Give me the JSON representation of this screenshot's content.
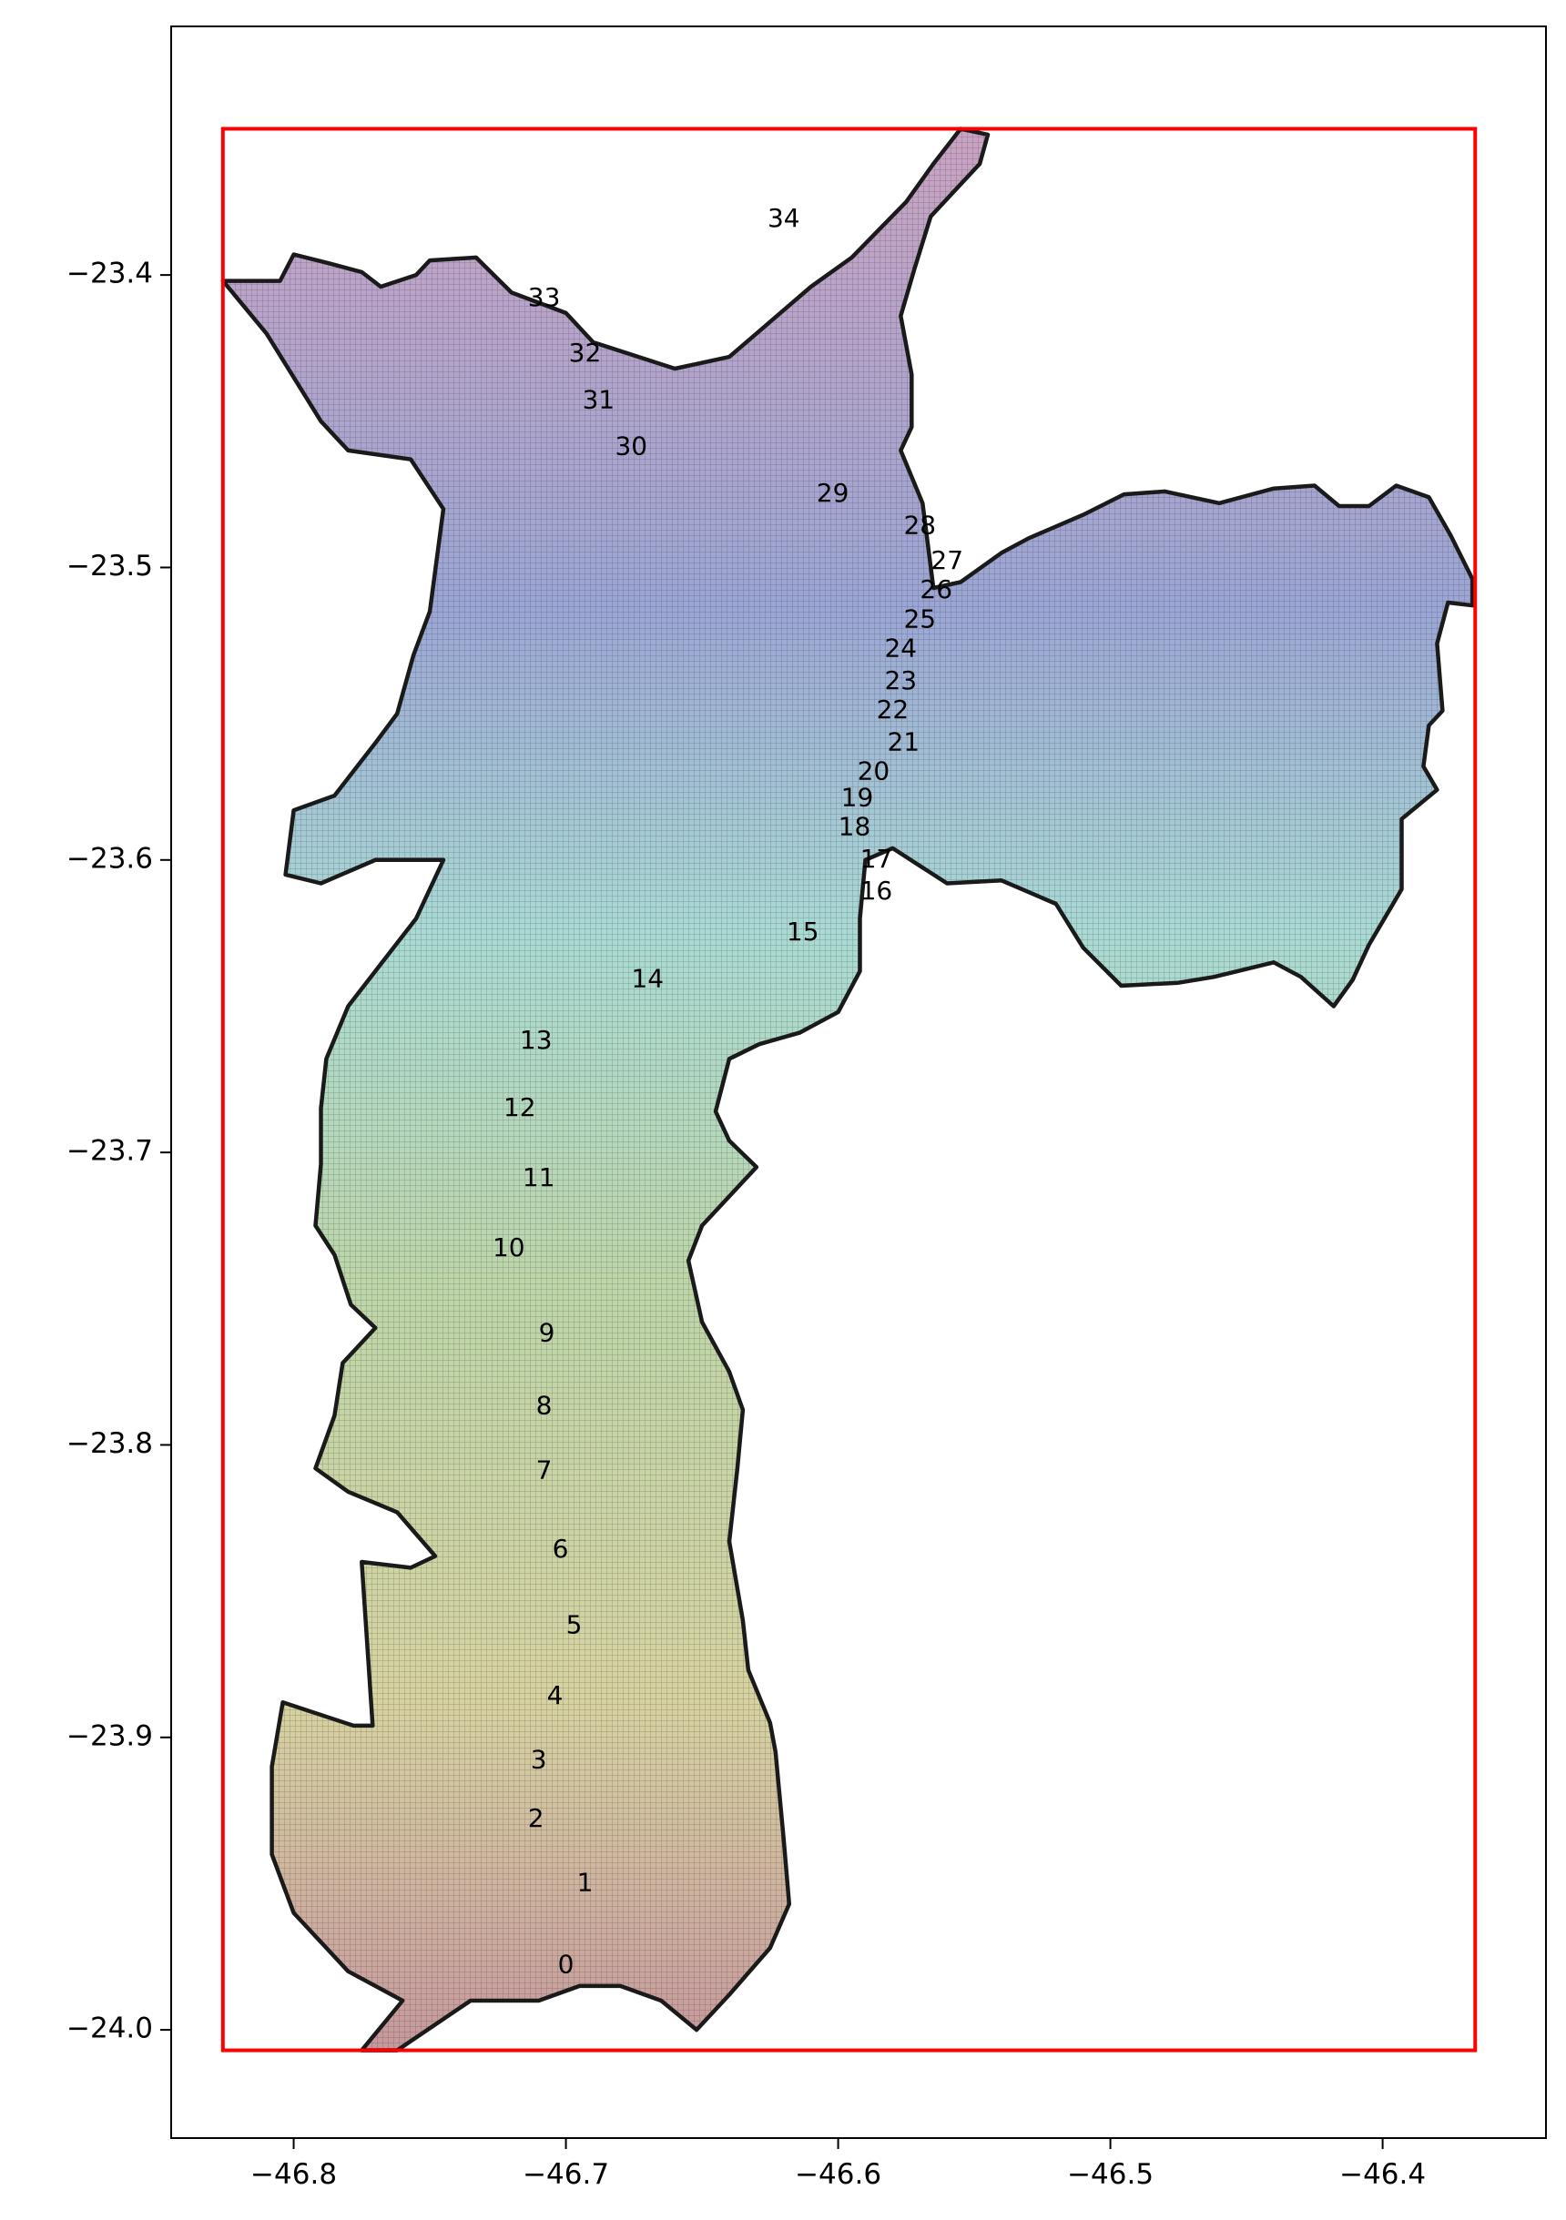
{
  "chart_data": {
    "type": "map",
    "xlim": [
      -46.845,
      -46.34
    ],
    "ylim": [
      -24.037,
      -23.315
    ],
    "xticks": [
      {
        "value": -46.8,
        "label": "−46.8"
      },
      {
        "value": -46.7,
        "label": "−46.7"
      },
      {
        "value": -46.6,
        "label": "−46.6"
      },
      {
        "value": -46.5,
        "label": "−46.5"
      },
      {
        "value": -46.4,
        "label": "−46.4"
      }
    ],
    "yticks": [
      {
        "value": -23.4,
        "label": "−23.4"
      },
      {
        "value": -23.5,
        "label": "−23.5"
      },
      {
        "value": -23.6,
        "label": "−23.6"
      },
      {
        "value": -23.7,
        "label": "−23.7"
      },
      {
        "value": -23.8,
        "label": "−23.8"
      },
      {
        "value": -23.9,
        "label": "−23.9"
      },
      {
        "value": -24.0,
        "label": "−24.0"
      }
    ],
    "bbox_rect": {
      "lon_min": -46.826,
      "lon_max": -46.366,
      "lat_min": -24.007,
      "lat_max": -23.35,
      "color": "#ff0000"
    },
    "gradient_colors": [
      "#c9a3c1",
      "#9aa6d4",
      "#a9dbd4",
      "#bcd6a8",
      "#d6d3a0",
      "#c6989c"
    ],
    "outline_color": "#1a1a1a",
    "boundary": [
      [
        -46.826,
        -23.402
      ],
      [
        -46.805,
        -23.402
      ],
      [
        -46.8,
        -23.393
      ],
      [
        -46.787,
        -23.396
      ],
      [
        -46.775,
        -23.399
      ],
      [
        -46.768,
        -23.404
      ],
      [
        -46.755,
        -23.4
      ],
      [
        -46.75,
        -23.395
      ],
      [
        -46.733,
        -23.394
      ],
      [
        -46.72,
        -23.406
      ],
      [
        -46.7,
        -23.413
      ],
      [
        -46.69,
        -23.423
      ],
      [
        -46.66,
        -23.432
      ],
      [
        -46.64,
        -23.428
      ],
      [
        -46.63,
        -23.42
      ],
      [
        -46.62,
        -23.412
      ],
      [
        -46.61,
        -23.404
      ],
      [
        -46.595,
        -23.394
      ],
      [
        -46.575,
        -23.375
      ],
      [
        -46.565,
        -23.362
      ],
      [
        -46.555,
        -23.35
      ],
      [
        -46.545,
        -23.352
      ],
      [
        -46.548,
        -23.362
      ],
      [
        -46.556,
        -23.37
      ],
      [
        -46.566,
        -23.38
      ],
      [
        -46.572,
        -23.398
      ],
      [
        -46.577,
        -23.414
      ],
      [
        -46.573,
        -23.434
      ],
      [
        -46.573,
        -23.452
      ],
      [
        -46.577,
        -23.46
      ],
      [
        -46.569,
        -23.478
      ],
      [
        -46.565,
        -23.507
      ],
      [
        -46.555,
        -23.505
      ],
      [
        -46.54,
        -23.495
      ],
      [
        -46.53,
        -23.49
      ],
      [
        -46.51,
        -23.482
      ],
      [
        -46.495,
        -23.475
      ],
      [
        -46.48,
        -23.474
      ],
      [
        -46.46,
        -23.478
      ],
      [
        -46.44,
        -23.473
      ],
      [
        -46.425,
        -23.472
      ],
      [
        -46.416,
        -23.479
      ],
      [
        -46.405,
        -23.479
      ],
      [
        -46.395,
        -23.472
      ],
      [
        -46.383,
        -23.476
      ],
      [
        -46.375,
        -23.489
      ],
      [
        -46.367,
        -23.504
      ],
      [
        -46.367,
        -23.513
      ],
      [
        -46.376,
        -23.512
      ],
      [
        -46.38,
        -23.526
      ],
      [
        -46.378,
        -23.549
      ],
      [
        -46.383,
        -23.554
      ],
      [
        -46.385,
        -23.568
      ],
      [
        -46.38,
        -23.576
      ],
      [
        -46.393,
        -23.586
      ],
      [
        -46.393,
        -23.61
      ],
      [
        -46.405,
        -23.629
      ],
      [
        -46.411,
        -23.641
      ],
      [
        -46.418,
        -23.65
      ],
      [
        -46.43,
        -23.64
      ],
      [
        -46.44,
        -23.635
      ],
      [
        -46.462,
        -23.64
      ],
      [
        -46.475,
        -23.642
      ],
      [
        -46.496,
        -23.643
      ],
      [
        -46.51,
        -23.63
      ],
      [
        -46.52,
        -23.615
      ],
      [
        -46.54,
        -23.607
      ],
      [
        -46.56,
        -23.608
      ],
      [
        -46.58,
        -23.596
      ],
      [
        -46.59,
        -23.6
      ],
      [
        -46.592,
        -23.62
      ],
      [
        -46.592,
        -23.638
      ],
      [
        -46.6,
        -23.652
      ],
      [
        -46.614,
        -23.659
      ],
      [
        -46.629,
        -23.663
      ],
      [
        -46.64,
        -23.668
      ],
      [
        -46.645,
        -23.686
      ],
      [
        -46.64,
        -23.696
      ],
      [
        -46.63,
        -23.705
      ],
      [
        -46.65,
        -23.725
      ],
      [
        -46.655,
        -23.737
      ],
      [
        -46.65,
        -23.758
      ],
      [
        -46.64,
        -23.775
      ],
      [
        -46.635,
        -23.788
      ],
      [
        -46.637,
        -23.808
      ],
      [
        -46.64,
        -23.833
      ],
      [
        -46.635,
        -23.86
      ],
      [
        -46.633,
        -23.877
      ],
      [
        -46.625,
        -23.895
      ],
      [
        -46.623,
        -23.905
      ],
      [
        -46.62,
        -23.935
      ],
      [
        -46.618,
        -23.957
      ],
      [
        -46.625,
        -23.972
      ],
      [
        -46.64,
        -23.988
      ],
      [
        -46.652,
        -24.0
      ],
      [
        -46.665,
        -23.99
      ],
      [
        -46.68,
        -23.985
      ],
      [
        -46.695,
        -23.985
      ],
      [
        -46.71,
        -23.99
      ],
      [
        -46.735,
        -23.99
      ],
      [
        -46.762,
        -24.007
      ],
      [
        -46.775,
        -24.007
      ],
      [
        -46.76,
        -23.99
      ],
      [
        -46.78,
        -23.98
      ],
      [
        -46.8,
        -23.96
      ],
      [
        -46.808,
        -23.94
      ],
      [
        -46.808,
        -23.91
      ],
      [
        -46.804,
        -23.888
      ],
      [
        -46.778,
        -23.896
      ],
      [
        -46.771,
        -23.896
      ],
      [
        -46.775,
        -23.84
      ],
      [
        -46.757,
        -23.842
      ],
      [
        -46.748,
        -23.838
      ],
      [
        -46.762,
        -23.823
      ],
      [
        -46.78,
        -23.816
      ],
      [
        -46.792,
        -23.808
      ],
      [
        -46.785,
        -23.79
      ],
      [
        -46.782,
        -23.772
      ],
      [
        -46.77,
        -23.76
      ],
      [
        -46.779,
        -23.752
      ],
      [
        -46.785,
        -23.735
      ],
      [
        -46.792,
        -23.725
      ],
      [
        -46.79,
        -23.704
      ],
      [
        -46.79,
        -23.685
      ],
      [
        -46.788,
        -23.668
      ],
      [
        -46.78,
        -23.65
      ],
      [
        -46.755,
        -23.62
      ],
      [
        -46.745,
        -23.6
      ],
      [
        -46.77,
        -23.6
      ],
      [
        -46.79,
        -23.608
      ],
      [
        -46.803,
        -23.605
      ],
      [
        -46.8,
        -23.583
      ],
      [
        -46.785,
        -23.578
      ],
      [
        -46.77,
        -23.56
      ],
      [
        -46.762,
        -23.55
      ],
      [
        -46.756,
        -23.53
      ],
      [
        -46.75,
        -23.515
      ],
      [
        -46.745,
        -23.48
      ],
      [
        -46.757,
        -23.463
      ],
      [
        -46.78,
        -23.46
      ],
      [
        -46.79,
        -23.45
      ],
      [
        -46.81,
        -23.42
      ],
      [
        -46.826,
        -23.402
      ]
    ],
    "labels": [
      {
        "text": "0",
        "lon": -46.7,
        "lat": -23.978
      },
      {
        "text": "1",
        "lon": -46.693,
        "lat": -23.95
      },
      {
        "text": "2",
        "lon": -46.711,
        "lat": -23.928
      },
      {
        "text": "3",
        "lon": -46.71,
        "lat": -23.908
      },
      {
        "text": "4",
        "lon": -46.704,
        "lat": -23.886
      },
      {
        "text": "5",
        "lon": -46.697,
        "lat": -23.862
      },
      {
        "text": "6",
        "lon": -46.702,
        "lat": -23.836
      },
      {
        "text": "7",
        "lon": -46.708,
        "lat": -23.809
      },
      {
        "text": "8",
        "lon": -46.708,
        "lat": -23.787
      },
      {
        "text": "9",
        "lon": -46.707,
        "lat": -23.762
      },
      {
        "text": "10",
        "lon": -46.721,
        "lat": -23.733
      },
      {
        "text": "11",
        "lon": -46.71,
        "lat": -23.709
      },
      {
        "text": "12",
        "lon": -46.717,
        "lat": -23.685
      },
      {
        "text": "13",
        "lon": -46.711,
        "lat": -23.662
      },
      {
        "text": "14",
        "lon": -46.67,
        "lat": -23.641
      },
      {
        "text": "15",
        "lon": -46.613,
        "lat": -23.625
      },
      {
        "text": "16",
        "lon": -46.586,
        "lat": -23.611
      },
      {
        "text": "17",
        "lon": -46.586,
        "lat": -23.6
      },
      {
        "text": "18",
        "lon": -46.594,
        "lat": -23.589
      },
      {
        "text": "19",
        "lon": -46.593,
        "lat": -23.579
      },
      {
        "text": "20",
        "lon": -46.587,
        "lat": -23.57
      },
      {
        "text": "21",
        "lon": -46.576,
        "lat": -23.56
      },
      {
        "text": "22",
        "lon": -46.58,
        "lat": -23.549
      },
      {
        "text": "23",
        "lon": -46.577,
        "lat": -23.539
      },
      {
        "text": "24",
        "lon": -46.577,
        "lat": -23.528
      },
      {
        "text": "25",
        "lon": -46.57,
        "lat": -23.518
      },
      {
        "text": "26",
        "lon": -46.564,
        "lat": -23.508
      },
      {
        "text": "27",
        "lon": -46.56,
        "lat": -23.498
      },
      {
        "text": "28",
        "lon": -46.57,
        "lat": -23.486
      },
      {
        "text": "29",
        "lon": -46.602,
        "lat": -23.475
      },
      {
        "text": "30",
        "lon": -46.676,
        "lat": -23.459
      },
      {
        "text": "31",
        "lon": -46.688,
        "lat": -23.443
      },
      {
        "text": "32",
        "lon": -46.693,
        "lat": -23.427
      },
      {
        "text": "33",
        "lon": -46.708,
        "lat": -23.408
      },
      {
        "text": "34",
        "lon": -46.62,
        "lat": -23.381
      }
    ]
  }
}
